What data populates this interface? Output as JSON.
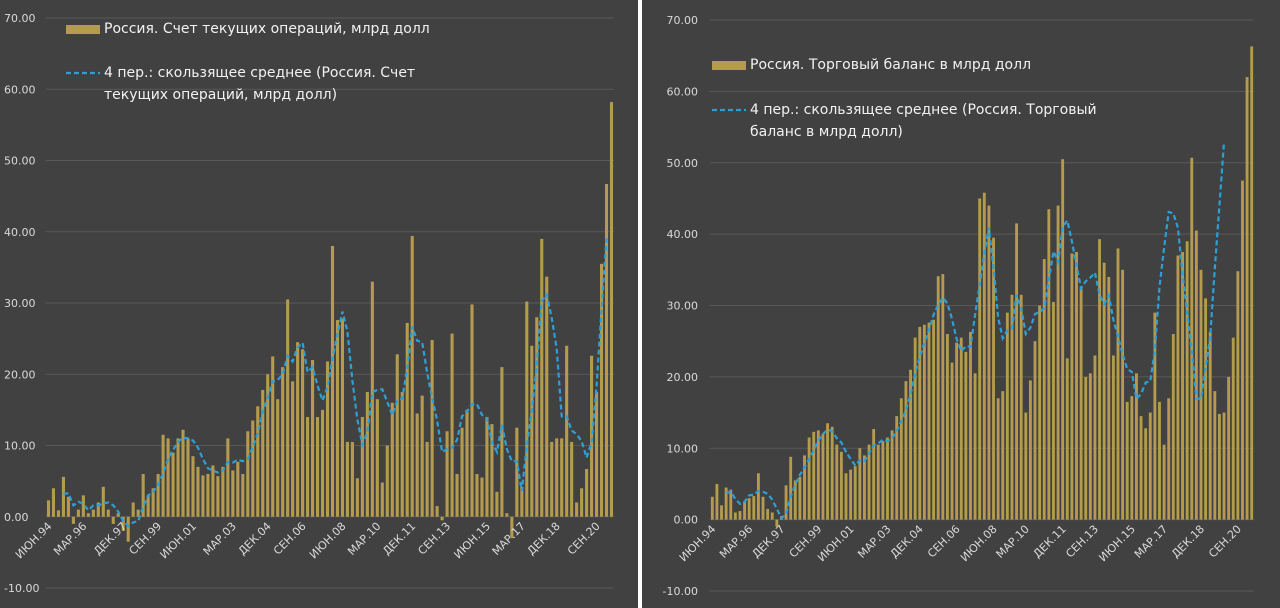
{
  "colors": {
    "background": "#414141",
    "bar": "#b59b4e",
    "moving_average": "#2e9fd6",
    "grid": "#595959",
    "text": "#d9d9d9"
  },
  "chart_data": [
    {
      "type": "bar",
      "legend": {
        "bar_label_lines": [
          "Россия. Счет текущих операций, млрд долл"
        ],
        "line_label_lines": [
          "4 пер.: скользящее среднее (Россия. Счет",
          "текущих операций, млрд долл)"
        ]
      },
      "series": [
        {
          "name": "Россия. Счет текущих операций, млрд долл",
          "type": "bar",
          "values": [
            2.3,
            4.0,
            0.9,
            5.6,
            2.8,
            -1.0,
            1.0,
            3.0,
            0.5,
            1.0,
            2.0,
            4.2,
            1.0,
            -1.0,
            0.5,
            -2.0,
            -3.5,
            2.0,
            1.0,
            6.0,
            3.0,
            4.0,
            6.0,
            11.5,
            11.0,
            9.0,
            11.0,
            12.2,
            11.0,
            8.5,
            7.0,
            5.8,
            6.0,
            7.2,
            5.7,
            7.0,
            11.0,
            6.5,
            7.7,
            6.0,
            12.0,
            13.5,
            15.5,
            17.8,
            20.0,
            22.5,
            16.5,
            21.0,
            30.5,
            19.0,
            24.5,
            23.5,
            14.0,
            22.0,
            14.0,
            15.0,
            21.8,
            38.0,
            27.6,
            27.8,
            10.5,
            10.5,
            5.4,
            14.0,
            17.5,
            33.0,
            16.5,
            4.8,
            10.0,
            16.0,
            22.8,
            17.5,
            27.2,
            39.4,
            14.5,
            17.0,
            10.5,
            24.8,
            1.5,
            -0.5,
            12.0,
            25.7,
            6.0,
            12.5,
            15.0,
            29.8,
            6.0,
            5.5,
            14.0,
            13.0,
            3.5,
            21.0,
            0.5,
            -3.0,
            12.5,
            4.2,
            30.2,
            24.0,
            28.0,
            39.0,
            33.7,
            10.5,
            11.0,
            11.0,
            24.0,
            10.5,
            2.0,
            4.0,
            6.7,
            22.6,
            17.5,
            35.5,
            46.7,
            58.2
          ]
        },
        {
          "name": "4 пер.: скользящее среднее (Россия. Счет текущих операций, млрд долл)",
          "type": "line",
          "values": [
            null,
            null,
            null,
            3.2,
            3.3,
            1.6,
            2.1,
            1.8,
            0.9,
            1.6,
            1.6,
            1.9,
            2.0,
            1.6,
            0.7,
            -0.6,
            -1.3,
            -0.8,
            -0.6,
            1.4,
            3.0,
            3.5,
            4.5,
            6.1,
            8.1,
            9.4,
            10.5,
            11.1,
            11.0,
            10.7,
            9.7,
            8.1,
            6.8,
            6.5,
            6.2,
            6.5,
            7.7,
            7.6,
            8.0,
            7.8,
            8.1,
            9.8,
            11.7,
            14.7,
            16.7,
            19.0,
            19.2,
            20.0,
            22.6,
            21.8,
            23.8,
            24.4,
            20.3,
            21.0,
            18.4,
            16.3,
            18.2,
            22.2,
            25.6,
            28.8,
            26.0,
            19.1,
            13.6,
            10.1,
            11.9,
            17.5,
            17.8,
            17.9,
            16.1,
            14.3,
            16.3,
            16.6,
            20.9,
            26.7,
            24.7,
            24.5,
            20.2,
            16.7,
            13.5,
            9.1,
            9.5,
            9.7,
            10.8,
            14.1,
            14.8,
            15.8,
            15.8,
            14.3,
            13.8,
            10.5,
            9.1,
            12.9,
            9.5,
            7.8,
            7.8,
            3.6,
            10.0,
            14.9,
            21.2,
            30.3,
            31.2,
            27.9,
            23.6,
            14.1,
            14.1,
            12.1,
            11.6,
            10.6,
            8.3,
            10.4,
            18.3,
            29.2,
            39.1
          ]
        }
      ],
      "ylim": [
        -10,
        70
      ],
      "y_ticks": [
        "-10.00",
        "0.00",
        "10.00",
        "20.00",
        "30.00",
        "40.00",
        "50.00",
        "60.00",
        "70.00"
      ],
      "x_tick_labels": [
        "ИЮН.94",
        "МАР.96",
        "ДЕК.97",
        "СЕН.99",
        "ИЮН.01",
        "МАР.03",
        "ДЕК.04",
        "СЕН.06",
        "ИЮН.08",
        "МАР.10",
        "ДЕК.11",
        "СЕН.13",
        "ИЮН.15",
        "МАР.17",
        "ДЕК.18",
        "СЕН.20"
      ],
      "legend_position": "top-left",
      "grid": true
    },
    {
      "type": "bar",
      "legend": {
        "bar_label_lines": [
          "Россия. Торговый баланс в млрд долл"
        ],
        "line_label_lines": [
          "4 пер.: скользящее среднее (Россия. Торговый",
          "баланс в млрд долл)"
        ]
      },
      "series": [
        {
          "name": "Россия. Торговый баланс в млрд долл",
          "type": "bar",
          "values": [
            3.2,
            5.0,
            2.0,
            4.5,
            4.2,
            1.0,
            1.2,
            2.5,
            3.0,
            3.3,
            6.5,
            3.2,
            1.5,
            1.0,
            -1.0,
            0.5,
            4.8,
            8.8,
            5.5,
            6.0,
            9.0,
            11.5,
            12.3,
            12.5,
            12.0,
            13.5,
            13.0,
            10.5,
            9.5,
            6.5,
            7.0,
            7.5,
            10.0,
            9.0,
            10.5,
            12.7,
            10.5,
            11.0,
            11.5,
            12.5,
            14.5,
            17.0,
            19.4,
            21.0,
            25.5,
            27.0,
            27.3,
            27.6,
            28.0,
            34.1,
            34.4,
            26.0,
            22.0,
            24.8,
            25.5,
            23.5,
            26.3,
            20.5,
            45.0,
            45.8,
            44.0,
            39.5,
            17.0,
            18.0,
            29.0,
            31.5,
            41.5,
            31.5,
            15.0,
            19.5,
            25.0,
            30.0,
            36.5,
            43.5,
            30.5,
            44.0,
            50.5,
            22.6,
            37.3,
            37.5,
            32.5,
            20.0,
            20.5,
            23.0,
            39.3,
            36.0,
            34.0,
            23.0,
            38.0,
            35.0,
            16.5,
            17.3,
            20.5,
            14.5,
            12.8,
            15.0,
            29.0,
            16.5,
            10.5,
            17.0,
            26.0,
            37.0,
            37.5,
            39.0,
            50.7,
            40.5,
            35.0,
            31.0,
            26.3,
            18.0,
            14.8,
            15.0,
            20.0,
            25.5,
            34.8,
            47.5,
            62.0,
            66.3
          ]
        },
        {
          "name": "4 пер.: скользящее среднее (Россия. Торговый баланс в млрд долл)",
          "type": "line",
          "values": [
            null,
            null,
            null,
            3.7,
            3.9,
            2.9,
            2.2,
            2.5,
            3.4,
            3.5,
            4.0,
            3.9,
            3.6,
            2.8,
            1.5,
            0.2,
            0.8,
            3.2,
            4.9,
            6.3,
            7.3,
            8.5,
            9.7,
            11.1,
            12.0,
            12.6,
            12.4,
            11.4,
            10.8,
            9.5,
            8.5,
            7.6,
            8.3,
            8.2,
            9.3,
            10.4,
            10.7,
            11.2,
            11.0,
            11.4,
            12.4,
            13.8,
            15.3,
            17.5,
            20.5,
            22.8,
            24.8,
            26.6,
            28.7,
            30.1,
            31.1,
            30.3,
            28.1,
            25.3,
            23.6,
            24.3,
            24.2,
            28.7,
            32.9,
            37.3,
            40.9,
            35.3,
            28.3,
            25.4,
            26.5,
            26.8,
            31.5,
            29.6,
            26.0,
            26.9,
            28.8,
            29.1,
            29.6,
            33.6,
            37.6,
            36.1,
            41.0,
            41.9,
            39.0,
            35.6,
            32.4,
            33.4,
            33.9,
            34.6,
            31.5,
            30.2,
            31.4,
            28.0,
            25.6,
            23.2,
            21.1,
            20.7,
            16.9,
            17.6,
            19.2,
            19.4,
            23.7,
            32.6,
            38.1,
            43.1,
            42.9,
            40.9,
            34.4,
            29.0,
            23.7,
            17.0,
            16.9,
            21.3,
            25.6,
            35.2,
            44.0,
            52.9
          ]
        }
      ],
      "ylim": [
        -10,
        70
      ],
      "y_ticks": [
        "-10.00",
        "0.00",
        "10.00",
        "20.00",
        "30.00",
        "40.00",
        "50.00",
        "60.00",
        "70.00"
      ],
      "x_tick_labels": [
        "ИЮН.94",
        "МАР.96",
        "ДЕК.97",
        "СЕН.99",
        "ИЮН.01",
        "МАР.03",
        "ДЕК.04",
        "СЕН.06",
        "ИЮН.08",
        "МАР.10",
        "ДЕК.11",
        "СЕН.13",
        "ИЮН.15",
        "МАР.17",
        "ДЕК.18",
        "СЕН.20"
      ],
      "legend_position": "top-left",
      "grid": true
    }
  ]
}
